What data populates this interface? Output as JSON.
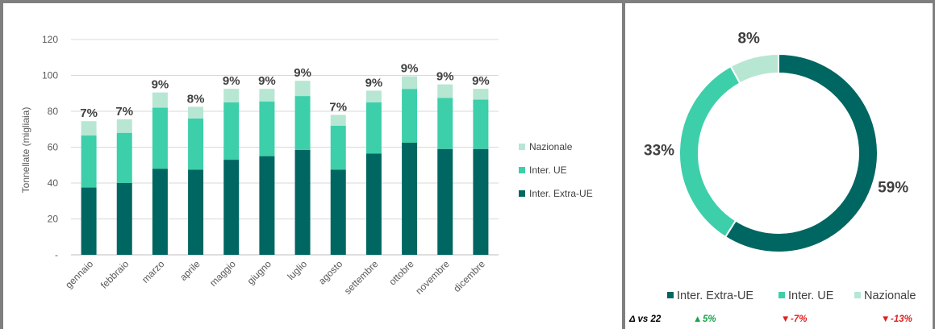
{
  "colors": {
    "extra_ue": "#006661",
    "ue": "#3dcfa9",
    "nazionale": "#b7e6d3",
    "up": "#1aa34a",
    "down": "#e02020"
  },
  "chart_data": [
    {
      "type": "bar",
      "stacked": true,
      "ylabel": "Tonnellate (migliaia)",
      "ylim": [
        0,
        120
      ],
      "yticks": [
        "-",
        "20",
        "40",
        "60",
        "80",
        "100",
        "120"
      ],
      "categories": [
        "gennaio",
        "febbraio",
        "marzo",
        "aprile",
        "maggio",
        "giugno",
        "luglio",
        "agosto",
        "settembre",
        "ottobre",
        "novembre",
        "dicembre"
      ],
      "series": [
        {
          "name": "Inter. Extra-UE",
          "values": [
            37.5,
            40,
            48,
            47.5,
            53,
            55,
            58.5,
            47.5,
            56.5,
            62.5,
            59,
            59
          ]
        },
        {
          "name": "Inter. UE",
          "values": [
            29,
            28,
            34,
            28.5,
            32,
            30.5,
            30,
            24.5,
            28.5,
            30,
            28.5,
            27.5
          ]
        },
        {
          "name": "Nazionale",
          "values": [
            8,
            7.5,
            8.5,
            6.5,
            7.5,
            7,
            8.5,
            6,
            6.5,
            7,
            7.5,
            6
          ]
        }
      ],
      "data_labels": [
        "7%",
        "7%",
        "9%",
        "8%",
        "9%",
        "9%",
        "9%",
        "7%",
        "9%",
        "9%",
        "9%",
        "9%"
      ],
      "legend": {
        "placement": "right",
        "entries": [
          "Nazionale",
          "Inter. UE",
          "Inter. Extra-UE"
        ]
      },
      "grid": true
    },
    {
      "type": "pie",
      "donut": true,
      "slices": [
        {
          "name": "Inter. Extra-UE",
          "value": 59,
          "label": "59%"
        },
        {
          "name": "Inter. UE",
          "value": 33,
          "label": "33%"
        },
        {
          "name": "Nazionale",
          "value": 8,
          "label": "8%"
        }
      ],
      "legend": {
        "placement": "bottom",
        "entries": [
          "Inter. Extra-UE",
          "Inter. UE",
          "Nazionale"
        ]
      }
    }
  ],
  "delta": {
    "title": "Δ vs 22",
    "items": [
      {
        "arrow": "▲",
        "value": "5%",
        "direction": "up"
      },
      {
        "arrow": "▼",
        "value": "-7%",
        "direction": "down"
      },
      {
        "arrow": "▼",
        "value": "-13%",
        "direction": "down"
      }
    ]
  }
}
